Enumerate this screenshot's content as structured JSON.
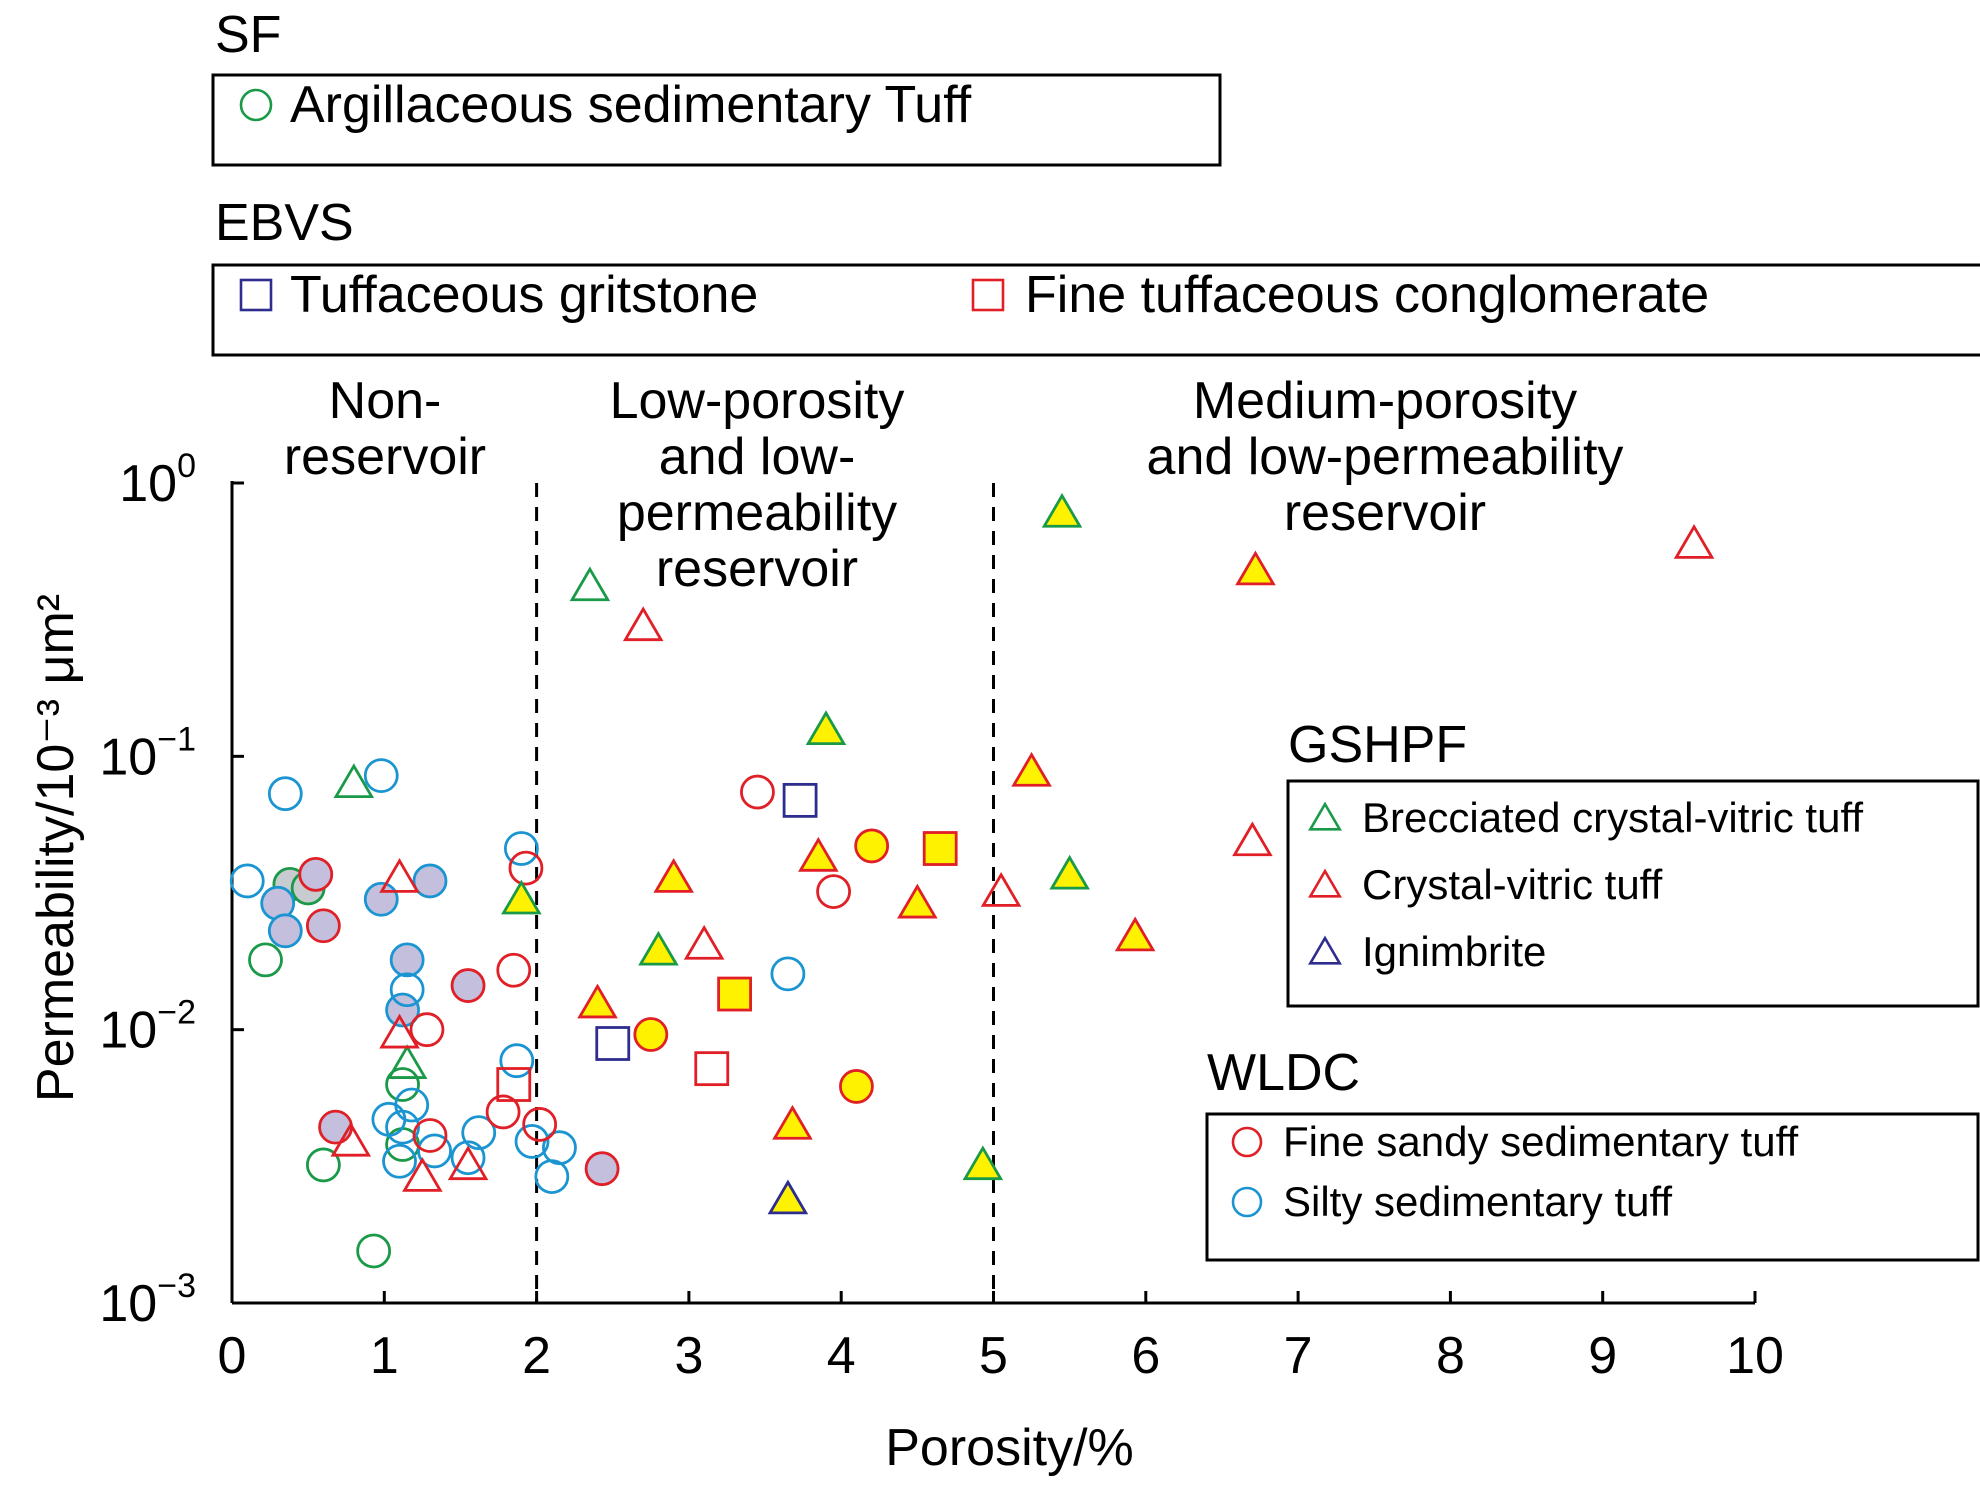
{
  "chart_data": {
    "type": "scatter",
    "xlabel": "Porosity/%",
    "ylabel": "Permeability/10⁻³ μm²",
    "x_range": [
      0,
      10
    ],
    "y_range": [
      0.001,
      1
    ],
    "y_scale": "log",
    "x_ticks": [
      "0",
      "1",
      "2",
      "3",
      "4",
      "5",
      "6",
      "7",
      "8",
      "9",
      "10"
    ],
    "y_ticks": [
      {
        "value": 1,
        "base": "10",
        "exp": "0"
      },
      {
        "value": 0.1,
        "base": "10",
        "exp": "−1"
      },
      {
        "value": 0.01,
        "base": "10",
        "exp": "−2"
      },
      {
        "value": 0.001,
        "base": "10",
        "exp": "−3"
      }
    ],
    "zone_boundaries": [
      2,
      5
    ],
    "zones": [
      {
        "lines": [
          "Non-",
          "reservoir"
        ]
      },
      {
        "lines": [
          "Low-porosity",
          "and low-",
          "permeability",
          "reservoir"
        ]
      },
      {
        "lines": [
          "Medium-porosity",
          "and low-permeability",
          "reservoir"
        ]
      }
    ],
    "legend_groups": [
      {
        "title": "SF",
        "placement": "top-left",
        "items": [
          {
            "label": "Argillaceous sedimentary Tuff",
            "marker": "circle",
            "color": "#1a9a48"
          }
        ]
      },
      {
        "title": "EBVS",
        "placement": "top-left",
        "items": [
          {
            "label": "Tuffaceous gritstone",
            "marker": "square",
            "color": "#2e2d8f"
          },
          {
            "label": "Fine tuffaceous conglomerate",
            "marker": "square",
            "color": "#e01f26"
          }
        ]
      },
      {
        "title": "GSHPF",
        "placement": "right",
        "items": [
          {
            "label": "Brecciated crystal-vitric tuff",
            "marker": "triangle",
            "color": "#1a9a48"
          },
          {
            "label": "Crystal-vitric tuff",
            "marker": "triangle",
            "color": "#e01f26"
          },
          {
            "label": "Ignimbrite",
            "marker": "triangle",
            "color": "#2e2d8f"
          }
        ]
      },
      {
        "title": "WLDC",
        "placement": "bottom-right",
        "items": [
          {
            "label": "Fine sandy sedimentary tuff",
            "marker": "circle",
            "color": "#e01f26"
          },
          {
            "label": "Silty sedimentary tuff",
            "marker": "circle",
            "color": "#1b95d2"
          }
        ]
      }
    ],
    "fill_colors": {
      "yellow": "#fff200",
      "lavender": "#c3bfdc",
      "gray": "#c8cbd0"
    },
    "series": [
      {
        "marker": "circle",
        "stroke": "#1a9a48",
        "points": [
          {
            "x": 0.38,
            "y": 0.034,
            "fill": "gray"
          },
          {
            "x": 0.5,
            "y": 0.033,
            "fill": "gray"
          },
          {
            "x": 0.22,
            "y": 0.018
          },
          {
            "x": 1.12,
            "y": 0.0063
          },
          {
            "x": 1.12,
            "y": 0.0038
          },
          {
            "x": 0.6,
            "y": 0.0032
          },
          {
            "x": 0.93,
            "y": 0.00155
          }
        ]
      },
      {
        "marker": "circle",
        "stroke": "#1b95d2",
        "points": [
          {
            "x": 0.35,
            "y": 0.073
          },
          {
            "x": 0.1,
            "y": 0.035
          },
          {
            "x": 0.98,
            "y": 0.085
          },
          {
            "x": 0.3,
            "y": 0.029,
            "fill": "lavender"
          },
          {
            "x": 0.35,
            "y": 0.023,
            "fill": "lavender"
          },
          {
            "x": 0.98,
            "y": 0.03,
            "fill": "lavender"
          },
          {
            "x": 1.3,
            "y": 0.035,
            "fill": "lavender"
          },
          {
            "x": 1.15,
            "y": 0.018,
            "fill": "lavender"
          },
          {
            "x": 1.12,
            "y": 0.0118,
            "fill": "lavender"
          },
          {
            "x": 1.15,
            "y": 0.014
          },
          {
            "x": 1.18,
            "y": 0.0053
          },
          {
            "x": 1.03,
            "y": 0.0047
          },
          {
            "x": 1.12,
            "y": 0.0044
          },
          {
            "x": 1.1,
            "y": 0.0033
          },
          {
            "x": 1.33,
            "y": 0.0036
          },
          {
            "x": 1.55,
            "y": 0.0034
          },
          {
            "x": 1.62,
            "y": 0.0042
          },
          {
            "x": 1.9,
            "y": 0.046
          },
          {
            "x": 1.87,
            "y": 0.0077
          },
          {
            "x": 1.97,
            "y": 0.0039
          },
          {
            "x": 2.1,
            "y": 0.0029
          },
          {
            "x": 2.15,
            "y": 0.0037
          },
          {
            "x": 3.65,
            "y": 0.016
          }
        ]
      },
      {
        "marker": "circle",
        "stroke": "#e01f26",
        "points": [
          {
            "x": 0.55,
            "y": 0.037,
            "fill": "lavender"
          },
          {
            "x": 0.6,
            "y": 0.024,
            "fill": "lavender"
          },
          {
            "x": 0.68,
            "y": 0.0044,
            "fill": "lavender"
          },
          {
            "x": 1.55,
            "y": 0.0145,
            "fill": "lavender"
          },
          {
            "x": 2.43,
            "y": 0.0031,
            "fill": "lavender"
          },
          {
            "x": 1.28,
            "y": 0.01
          },
          {
            "x": 1.3,
            "y": 0.0041
          },
          {
            "x": 1.85,
            "y": 0.0165
          },
          {
            "x": 1.93,
            "y": 0.039
          },
          {
            "x": 1.78,
            "y": 0.005
          },
          {
            "x": 2.02,
            "y": 0.0045
          },
          {
            "x": 3.45,
            "y": 0.074
          },
          {
            "x": 3.95,
            "y": 0.032
          },
          {
            "x": 2.75,
            "y": 0.0096,
            "fill": "yellow"
          },
          {
            "x": 4.2,
            "y": 0.047,
            "fill": "yellow"
          },
          {
            "x": 4.1,
            "y": 0.0062,
            "fill": "yellow"
          }
        ]
      },
      {
        "marker": "square",
        "stroke": "#2e2d8f",
        "points": [
          {
            "x": 2.5,
            "y": 0.0089
          },
          {
            "x": 3.73,
            "y": 0.069
          }
        ]
      },
      {
        "marker": "square",
        "stroke": "#e01f26",
        "points": [
          {
            "x": 1.85,
            "y": 0.0063
          },
          {
            "x": 3.15,
            "y": 0.0072
          },
          {
            "x": 3.3,
            "y": 0.0135,
            "fill": "yellow"
          },
          {
            "x": 4.65,
            "y": 0.046,
            "fill": "yellow"
          }
        ]
      },
      {
        "marker": "triangle",
        "stroke": "#1a9a48",
        "points": [
          {
            "x": 0.8,
            "y": 0.08
          },
          {
            "x": 1.15,
            "y": 0.0075
          },
          {
            "x": 2.35,
            "y": 0.42
          },
          {
            "x": 1.9,
            "y": 0.03,
            "fill": "yellow"
          },
          {
            "x": 2.8,
            "y": 0.0195,
            "fill": "yellow"
          },
          {
            "x": 3.9,
            "y": 0.125,
            "fill": "yellow"
          },
          {
            "x": 5.45,
            "y": 0.78,
            "fill": "yellow"
          },
          {
            "x": 5.5,
            "y": 0.037,
            "fill": "yellow"
          },
          {
            "x": 4.93,
            "y": 0.0032,
            "fill": "yellow"
          }
        ]
      },
      {
        "marker": "triangle",
        "stroke": "#e01f26",
        "points": [
          {
            "x": 1.1,
            "y": 0.036
          },
          {
            "x": 1.1,
            "y": 0.0097
          },
          {
            "x": 0.78,
            "y": 0.0039
          },
          {
            "x": 1.25,
            "y": 0.0029
          },
          {
            "x": 1.55,
            "y": 0.0032
          },
          {
            "x": 2.7,
            "y": 0.3
          },
          {
            "x": 3.1,
            "y": 0.0205
          },
          {
            "x": 5.05,
            "y": 0.032
          },
          {
            "x": 6.7,
            "y": 0.049
          },
          {
            "x": 9.6,
            "y": 0.6
          },
          {
            "x": 2.4,
            "y": 0.0125,
            "fill": "yellow"
          },
          {
            "x": 2.9,
            "y": 0.036,
            "fill": "yellow"
          },
          {
            "x": 3.68,
            "y": 0.0045,
            "fill": "yellow"
          },
          {
            "x": 3.85,
            "y": 0.043,
            "fill": "yellow"
          },
          {
            "x": 4.5,
            "y": 0.029,
            "fill": "yellow"
          },
          {
            "x": 5.25,
            "y": 0.088,
            "fill": "yellow"
          },
          {
            "x": 5.93,
            "y": 0.022,
            "fill": "yellow"
          },
          {
            "x": 6.72,
            "y": 0.48,
            "fill": "yellow"
          }
        ]
      },
      {
        "marker": "triangle",
        "stroke": "#2e2d8f",
        "points": [
          {
            "x": 3.65,
            "y": 0.0024,
            "fill": "yellow"
          }
        ]
      }
    ]
  }
}
